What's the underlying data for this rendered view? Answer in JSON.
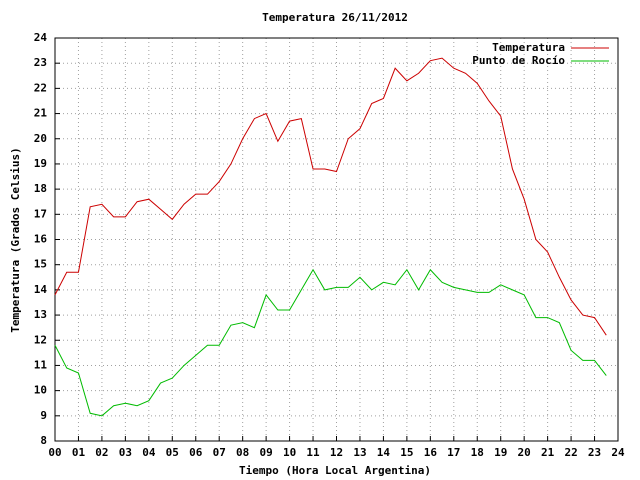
{
  "chart_data": {
    "type": "line",
    "title": "Temperatura 26/11/2012",
    "x_label": "Tiempo (Hora Local Argentina)",
    "y_label": "Temperatura (Grados Celsius)",
    "x": [
      0,
      0.5,
      1,
      1.5,
      2,
      2.5,
      3,
      3.5,
      4,
      4.5,
      5,
      5.5,
      6,
      6.5,
      7,
      7.5,
      8,
      8.5,
      9,
      9.5,
      10,
      10.5,
      11,
      11.5,
      12,
      12.5,
      13,
      13.5,
      14,
      14.5,
      15,
      15.5,
      16,
      16.5,
      17,
      17.5,
      18,
      18.5,
      19,
      19.5,
      20,
      20.5,
      21,
      21.5,
      22,
      22.5,
      23,
      23.5
    ],
    "series": [
      {
        "name": "Temperatura",
        "color": "#cc0000",
        "values": [
          13.8,
          14.7,
          14.7,
          17.3,
          17.4,
          16.9,
          16.9,
          17.5,
          17.6,
          17.2,
          16.8,
          17.4,
          17.8,
          17.8,
          18.3,
          19.0,
          20.0,
          20.8,
          21.0,
          19.9,
          20.7,
          20.8,
          18.8,
          18.8,
          18.7,
          20.0,
          20.4,
          21.4,
          21.6,
          22.8,
          22.3,
          22.6,
          23.1,
          23.2,
          22.8,
          22.6,
          22.2,
          21.5,
          20.9,
          18.8,
          17.6,
          16.0,
          15.5,
          14.5,
          13.6,
          13.0,
          12.9,
          12.2
        ]
      },
      {
        "name": "Punto de Rocío",
        "color": "#00bb00",
        "values": [
          11.8,
          10.9,
          10.7,
          9.1,
          9.0,
          9.4,
          9.5,
          9.4,
          9.6,
          10.3,
          10.5,
          11.0,
          11.4,
          11.8,
          11.8,
          12.6,
          12.7,
          12.5,
          13.8,
          13.2,
          13.2,
          14.0,
          14.8,
          14.0,
          14.1,
          14.1,
          14.5,
          14.0,
          14.3,
          14.2,
          14.8,
          14.0,
          14.8,
          14.3,
          14.1,
          14.0,
          13.9,
          13.9,
          14.2,
          14.0,
          13.8,
          12.9,
          12.9,
          12.7,
          11.6,
          11.2,
          11.2,
          10.6
        ]
      }
    ],
    "xlim": [
      0,
      24
    ],
    "xticks": [
      {
        "value": 0,
        "label": "00"
      },
      {
        "value": 1,
        "label": "01"
      },
      {
        "value": 2,
        "label": "02"
      },
      {
        "value": 3,
        "label": "03"
      },
      {
        "value": 4,
        "label": "04"
      },
      {
        "value": 5,
        "label": "05"
      },
      {
        "value": 6,
        "label": "06"
      },
      {
        "value": 7,
        "label": "07"
      },
      {
        "value": 8,
        "label": "08"
      },
      {
        "value": 9,
        "label": "09"
      },
      {
        "value": 10,
        "label": "10"
      },
      {
        "value": 11,
        "label": "11"
      },
      {
        "value": 12,
        "label": "12"
      },
      {
        "value": 13,
        "label": "13"
      },
      {
        "value": 14,
        "label": "14"
      },
      {
        "value": 15,
        "label": "15"
      },
      {
        "value": 16,
        "label": "16"
      },
      {
        "value": 17,
        "label": "17"
      },
      {
        "value": 18,
        "label": "18"
      },
      {
        "value": 19,
        "label": "19"
      },
      {
        "value": 20,
        "label": "20"
      },
      {
        "value": 21,
        "label": "21"
      },
      {
        "value": 22,
        "label": "22"
      },
      {
        "value": 23,
        "label": "23"
      },
      {
        "value": 24,
        "label": "24"
      }
    ],
    "ylim": [
      8,
      24
    ],
    "yticks": [
      8,
      9,
      10,
      11,
      12,
      13,
      14,
      15,
      16,
      17,
      18,
      19,
      20,
      21,
      22,
      23,
      24
    ],
    "grid": true,
    "legend": "top right"
  }
}
